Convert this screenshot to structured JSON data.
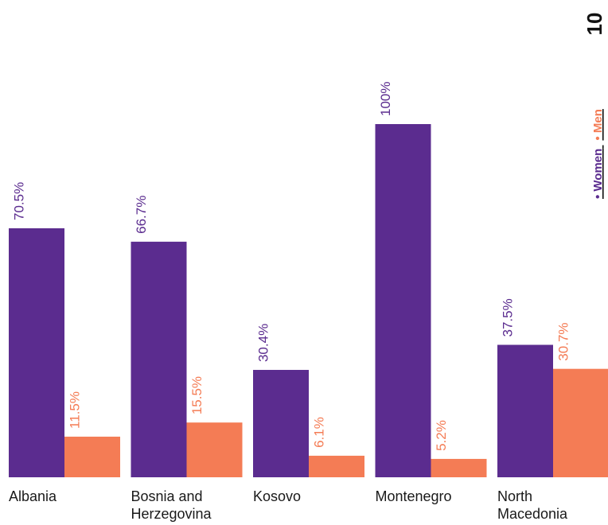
{
  "chart_data": {
    "type": "bar",
    "categories": [
      [
        "Albania"
      ],
      [
        "Bosnia and",
        "Herzegovina"
      ],
      [
        "Kosovo"
      ],
      [
        "Montenegro"
      ],
      [
        "North",
        "Macedonia"
      ]
    ],
    "series": [
      {
        "name": "Women",
        "color": "#5b2c8f",
        "values": [
          70.5,
          66.7,
          30.4,
          100,
          37.5
        ],
        "labels": [
          "70.5%",
          "66.7%",
          "30.4%",
          "100%",
          "37.5%"
        ]
      },
      {
        "name": "Men",
        "color": "#f47c55",
        "values": [
          11.5,
          15.5,
          6.1,
          5.2,
          30.7
        ],
        "labels": [
          "11.5%",
          "15.5%",
          "6.1%",
          "5.2%",
          "30.7%"
        ]
      }
    ],
    "ylim": [
      0,
      100
    ],
    "legend": {
      "position": "right-vertical",
      "items": [
        "• Women",
        "• Men"
      ]
    },
    "corner_label": "10",
    "grid": false
  }
}
